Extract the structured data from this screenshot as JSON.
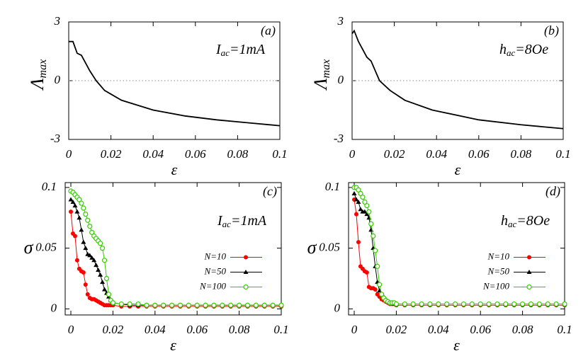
{
  "chart_data": [
    {
      "type": "line",
      "panel_label": "(a)",
      "annotation": {
        "base": "I",
        "sub": "ac",
        "rest": "=1mA"
      },
      "ylabel": {
        "base": "Λ",
        "sub": "max"
      },
      "xlabel": "ε",
      "x": [
        0,
        0.002,
        0.003,
        0.004,
        0.006,
        0.008,
        0.01,
        0.013,
        0.017,
        0.025,
        0.04,
        0.055,
        0.07,
        0.085,
        0.1
      ],
      "values": [
        2.0,
        2.0,
        1.7,
        1.4,
        1.3,
        0.9,
        0.5,
        0,
        -0.5,
        -1.0,
        -1.5,
        -1.8,
        -2.0,
        -2.15,
        -2.3
      ],
      "color": "#000000",
      "hline": 0,
      "xlim": [
        0,
        0.1
      ],
      "ylim": [
        -3,
        3
      ],
      "xticks": [
        0,
        0.02,
        0.04,
        0.06,
        0.08,
        0.1
      ],
      "yticks": [
        -3,
        0,
        3
      ]
    },
    {
      "type": "line",
      "panel_label": "(b)",
      "annotation": {
        "base": "h",
        "sub": "ac",
        "rest": "=8Oe"
      },
      "ylabel": {
        "base": "Λ",
        "sub": "max"
      },
      "xlabel": "ε",
      "x": [
        0,
        0.001,
        0.003,
        0.005,
        0.007,
        0.009,
        0.011,
        0.013,
        0.018,
        0.025,
        0.038,
        0.06,
        0.08,
        0.1
      ],
      "values": [
        2.4,
        2.55,
        2.0,
        1.6,
        1.2,
        1.0,
        0.5,
        0,
        -0.5,
        -1.0,
        -1.5,
        -2.0,
        -2.25,
        -2.45
      ],
      "color": "#000000",
      "hline": 0,
      "xlim": [
        0,
        0.1
      ],
      "ylim": [
        -3,
        3
      ],
      "xticks": [
        0,
        0.02,
        0.04,
        0.06,
        0.08,
        0.1
      ],
      "yticks": [
        -3,
        0,
        3
      ]
    },
    {
      "type": "line",
      "panel_label": "(c)",
      "annotation": {
        "base": "I",
        "sub": "ac",
        "rest": "=1mA"
      },
      "ylabel": {
        "base": "σ"
      },
      "xlabel": "ε",
      "x": [
        0,
        0.001,
        0.002,
        0.003,
        0.004,
        0.005,
        0.006,
        0.007,
        0.008,
        0.009,
        0.01,
        0.011,
        0.012,
        0.013,
        0.014,
        0.015,
        0.016,
        0.017,
        0.018,
        0.019,
        0.02,
        0.024,
        0.028,
        0.032,
        0.036,
        0.04,
        0.044,
        0.048,
        0.052,
        0.056,
        0.06,
        0.064,
        0.068,
        0.072,
        0.076,
        0.08,
        0.084,
        0.088,
        0.092,
        0.096,
        0.1
      ],
      "series": [
        {
          "name": "N=10",
          "color": "#ff0000",
          "marker": "filled-circle",
          "values": [
            0.08,
            0.062,
            0.06,
            0.04,
            0.033,
            0.031,
            0.03,
            0.02,
            0.012,
            0.009,
            0.008,
            0.008,
            0.007,
            0.006,
            0.005,
            0.004,
            0.003,
            0.003,
            0.003,
            0.003,
            0.003,
            0.002,
            0.002,
            0.002,
            0.002,
            0.002,
            0.002,
            0.002,
            0.002,
            0.002,
            0.002,
            0.002,
            0.002,
            0.002,
            0.002,
            0.002,
            0.002,
            0.002,
            0.002,
            0.002,
            0.002
          ]
        },
        {
          "name": "N=50",
          "color": "#000000",
          "marker": "triangle",
          "values": [
            0.09,
            0.088,
            0.085,
            0.08,
            0.075,
            0.065,
            0.055,
            0.05,
            0.045,
            0.044,
            0.042,
            0.04,
            0.036,
            0.032,
            0.028,
            0.022,
            0.016,
            0.013,
            0.01,
            0.007,
            0.005,
            0.004,
            0.003,
            0.003,
            0.003,
            0.003,
            0.003,
            0.003,
            0.003,
            0.003,
            0.003,
            0.003,
            0.003,
            0.003,
            0.003,
            0.003,
            0.003,
            0.003,
            0.003,
            0.003,
            0.003
          ]
        },
        {
          "name": "N=100",
          "color": "#33cc00",
          "marker": "open-circle",
          "values": [
            0.097,
            0.096,
            0.094,
            0.092,
            0.09,
            0.087,
            0.083,
            0.078,
            0.073,
            0.068,
            0.063,
            0.06,
            0.058,
            0.056,
            0.054,
            0.05,
            0.04,
            0.025,
            0.012,
            0.007,
            0.005,
            0.004,
            0.004,
            0.004,
            0.003,
            0.003,
            0.003,
            0.003,
            0.003,
            0.003,
            0.003,
            0.003,
            0.003,
            0.003,
            0.003,
            0.003,
            0.003,
            0.003,
            0.003,
            0.003,
            0.003
          ]
        }
      ],
      "legend": "center-right",
      "xlim": [
        -0.0027,
        0.1
      ],
      "ylim": [
        -0.005,
        0.104
      ],
      "xticks": [
        0,
        0.02,
        0.04,
        0.06,
        0.08,
        0.1
      ],
      "yticks": [
        0,
        0.05,
        0.1
      ]
    },
    {
      "type": "line",
      "panel_label": "(d)",
      "annotation": {
        "base": "h",
        "sub": "ac",
        "rest": "=8Oe"
      },
      "ylabel": {
        "base": "σ"
      },
      "xlabel": "ε",
      "x": [
        0,
        0.001,
        0.002,
        0.003,
        0.004,
        0.005,
        0.006,
        0.007,
        0.008,
        0.009,
        0.01,
        0.011,
        0.012,
        0.013,
        0.014,
        0.015,
        0.016,
        0.017,
        0.018,
        0.019,
        0.02,
        0.024,
        0.028,
        0.032,
        0.036,
        0.04,
        0.044,
        0.048,
        0.052,
        0.056,
        0.06,
        0.064,
        0.068,
        0.072,
        0.076,
        0.08,
        0.084,
        0.088,
        0.092,
        0.096,
        0.1
      ],
      "series": [
        {
          "name": "N=10",
          "color": "#ff0000",
          "marker": "filled-circle",
          "values": [
            0.09,
            0.078,
            0.055,
            0.035,
            0.033,
            0.031,
            0.03,
            0.018,
            0.017,
            0.017,
            0.016,
            0.012,
            0.01,
            0.008,
            0.007,
            0.006,
            0.005,
            0.004,
            0.004,
            0.004,
            0.003,
            0.003,
            0.003,
            0.003,
            0.003,
            0.003,
            0.003,
            0.003,
            0.003,
            0.003,
            0.003,
            0.003,
            0.003,
            0.003,
            0.003,
            0.003,
            0.003,
            0.003,
            0.003,
            0.003,
            0.003
          ]
        },
        {
          "name": "N=50",
          "color": "#000000",
          "marker": "triangle",
          "values": [
            0.095,
            0.09,
            0.088,
            0.082,
            0.08,
            0.08,
            0.078,
            0.075,
            0.065,
            0.05,
            0.035,
            0.022,
            0.015,
            0.012,
            0.01,
            0.008,
            0.006,
            0.005,
            0.005,
            0.004,
            0.004,
            0.004,
            0.004,
            0.004,
            0.004,
            0.004,
            0.004,
            0.004,
            0.004,
            0.004,
            0.004,
            0.004,
            0.004,
            0.004,
            0.004,
            0.004,
            0.004,
            0.004,
            0.004,
            0.004,
            0.004
          ]
        },
        {
          "name": "N=100",
          "color": "#33cc00",
          "marker": "open-circle",
          "values": [
            0.1,
            0.1,
            0.098,
            0.095,
            0.092,
            0.088,
            0.085,
            0.08,
            0.07,
            0.06,
            0.048,
            0.035,
            0.02,
            0.012,
            0.009,
            0.007,
            0.006,
            0.005,
            0.005,
            0.005,
            0.004,
            0.004,
            0.004,
            0.004,
            0.004,
            0.004,
            0.004,
            0.004,
            0.004,
            0.004,
            0.004,
            0.004,
            0.004,
            0.004,
            0.004,
            0.004,
            0.004,
            0.004,
            0.004,
            0.004,
            0.004
          ]
        }
      ],
      "legend": "center-right",
      "xlim": [
        -0.0027,
        0.1
      ],
      "ylim": [
        -0.005,
        0.104
      ],
      "xticks": [
        0,
        0.02,
        0.04,
        0.06,
        0.08,
        0.1
      ],
      "yticks": [
        0,
        0.05,
        0.1
      ]
    }
  ]
}
